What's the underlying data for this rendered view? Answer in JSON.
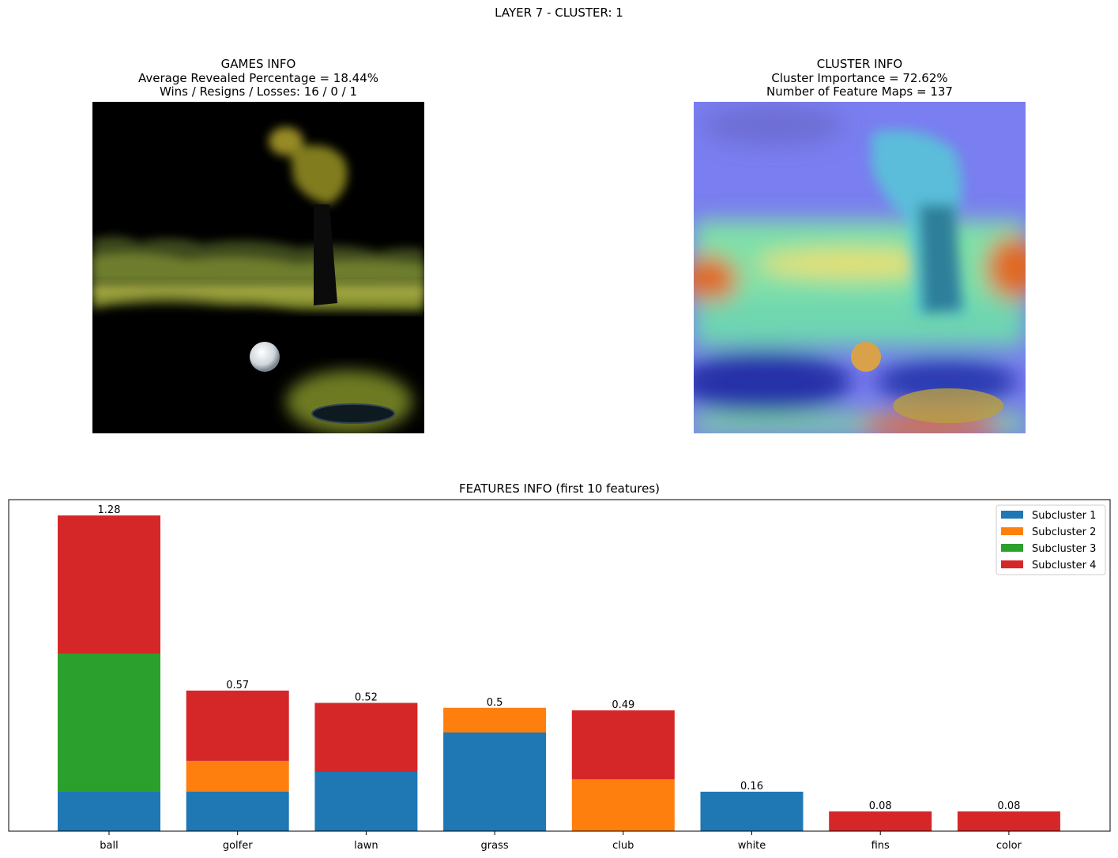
{
  "suptitle": "LAYER 7 - CLUSTER: 1",
  "games_info": {
    "title": "GAMES INFO",
    "line1": "Average Revealed Percentage = 18.44%",
    "line2": "Wins / Resigns / Losses: 16 / 0 / 1"
  },
  "cluster_info": {
    "title": "CLUSTER INFO",
    "line1": "Cluster Importance = 72.62%",
    "line2": "Number of Feature Maps = 137"
  },
  "features_title": "FEATURES INFO (first 10 features)",
  "chart_data": {
    "type": "bar",
    "stacked": true,
    "title": "FEATURES INFO (first 10 features)",
    "categories": [
      "ball",
      "golfer",
      "lawn",
      "grass",
      "club",
      "white",
      "fins",
      "color"
    ],
    "totals": [
      "1.28",
      "0.57",
      "0.52",
      "0.5",
      "0.49",
      "0.16",
      "0.08",
      "0.08"
    ],
    "series": [
      {
        "name": "Subcluster 1",
        "color": "#1f77b4",
        "values": [
          0.16,
          0.16,
          0.24,
          0.4,
          0.0,
          0.16,
          0.0,
          0.0
        ]
      },
      {
        "name": "Subcluster 2",
        "color": "#ff7f0e",
        "values": [
          0.0,
          0.125,
          0.0,
          0.1,
          0.21,
          0.0,
          0.0,
          0.0
        ]
      },
      {
        "name": "Subcluster 3",
        "color": "#2ca02c",
        "values": [
          0.56,
          0.0,
          0.0,
          0.0,
          0.0,
          0.0,
          0.0,
          0.0
        ]
      },
      {
        "name": "Subcluster 4",
        "color": "#d62728",
        "values": [
          0.56,
          0.285,
          0.28,
          0.0,
          0.28,
          0.0,
          0.08,
          0.08
        ]
      }
    ],
    "ylim": [
      0,
      1.344
    ],
    "y_ticks_visible": false,
    "legend_position": "upper right",
    "grid": false
  }
}
